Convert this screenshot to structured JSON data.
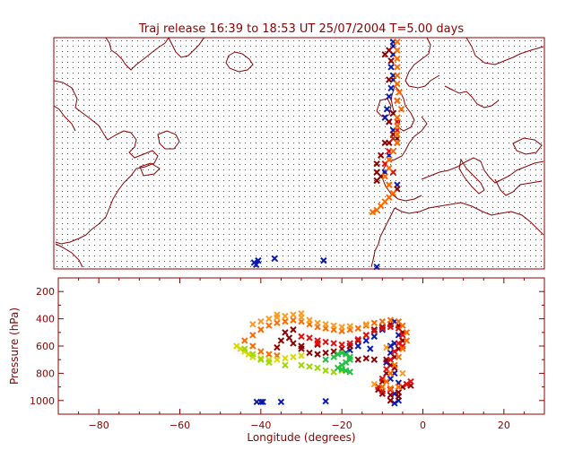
{
  "colors": {
    "axis": "#8b0000",
    "background": "#ffffff",
    "grid_dots": "#7a3a3a",
    "coast": "#8b0000",
    "cross_blue": "#0a1ab0",
    "cross_darkred": "#8b0000",
    "cross_red": "#e01010",
    "cross_orange": "#ff6a00",
    "cross_lightorange": "#ff9a20",
    "cross_yellow": "#d8d800",
    "cross_lime": "#9ad800",
    "cross_green": "#20c040"
  },
  "chart_data": [
    {
      "type": "scatter",
      "title": "Traj release 16:39 to 18:53 UT 25/07/2004     T=5.00 days",
      "xlim": [
        -90,
        30
      ],
      "ylim": [
        25,
        80
      ],
      "grid": "dotted",
      "coastlines": true,
      "series": [
        {
          "color": "blue",
          "points": [
            [
              -7,
              79
            ],
            [
              -7,
              78
            ],
            [
              -7,
              76
            ],
            [
              -7.5,
              73
            ],
            [
              -7,
              71
            ],
            [
              -7,
              70
            ],
            [
              -7.5,
              68
            ],
            [
              -8,
              66
            ],
            [
              -8.5,
              63
            ],
            [
              -9,
              61
            ],
            [
              -8,
              60
            ],
            [
              -7,
              58
            ],
            [
              -6,
              55
            ],
            [
              -8,
              52
            ],
            [
              -9,
              48
            ],
            [
              -6,
              45
            ],
            [
              -40,
              27
            ],
            [
              -41,
              26.5
            ],
            [
              -40.5,
              26
            ],
            [
              -36,
              27.5
            ],
            [
              -24,
              27
            ],
            [
              -11,
              25.5
            ]
          ]
        },
        {
          "color": "darkred",
          "points": [
            [
              -8,
              77
            ],
            [
              -9,
              76
            ],
            [
              -7.5,
              74.5
            ],
            [
              -8,
              70
            ],
            [
              -6,
              65
            ],
            [
              -7,
              62
            ],
            [
              -8,
              60
            ],
            [
              -7,
              57
            ],
            [
              -6,
              56
            ],
            [
              -8,
              55
            ],
            [
              -10,
              52
            ],
            [
              -11,
              50
            ],
            [
              -11,
              48
            ],
            [
              -10,
              47
            ],
            [
              -11,
              46
            ],
            [
              -9,
              55
            ],
            [
              -6,
              44
            ]
          ]
        },
        {
          "color": "red",
          "points": [
            [
              -6,
              60
            ],
            [
              -6,
              58
            ],
            [
              -7,
              56
            ],
            [
              -8,
              53
            ],
            [
              -9,
              50
            ],
            [
              -7,
              48
            ],
            [
              -8,
              45
            ]
          ]
        },
        {
          "color": "orange",
          "points": [
            [
              -6,
              79
            ],
            [
              -6,
              77
            ],
            [
              -6,
              75
            ],
            [
              -6,
              73
            ],
            [
              -6,
              71
            ],
            [
              -6,
              69
            ],
            [
              -5.5,
              67
            ],
            [
              -6,
              65
            ],
            [
              -5,
              63
            ],
            [
              -6,
              61
            ],
            [
              -6,
              59
            ],
            [
              -6,
              57
            ],
            [
              -6,
              55
            ],
            [
              -7,
              53
            ],
            [
              -8,
              51
            ],
            [
              -8,
              49
            ],
            [
              -9,
              47
            ],
            [
              -8,
              45
            ],
            [
              -7,
              43
            ],
            [
              -8,
              42
            ],
            [
              -9,
              41
            ],
            [
              -10,
              40
            ],
            [
              -11,
              39
            ],
            [
              -12,
              38.5
            ]
          ]
        }
      ]
    },
    {
      "type": "scatter",
      "xlabel": "Longitude  (degrees)",
      "ylabel": "Pressure  (hPa)",
      "xlim": [
        -90,
        30
      ],
      "ylim": [
        1100,
        100
      ],
      "xticks": [
        "−80",
        "−60",
        "−40",
        "−20",
        "0",
        "20"
      ],
      "yticks": [
        "200",
        "400",
        "600",
        "800",
        "1000"
      ],
      "series": [
        {
          "color": "blue",
          "points": [
            [
              -7,
              420
            ],
            [
              -8,
              440
            ],
            [
              -10,
              480
            ],
            [
              -12,
              530
            ],
            [
              -14,
              560
            ],
            [
              -16,
              600
            ],
            [
              -18,
              630
            ],
            [
              -19,
              650
            ],
            [
              -13,
              620
            ],
            [
              -8,
              600
            ],
            [
              -5,
              560
            ],
            [
              -6,
              520
            ],
            [
              -7,
              580
            ],
            [
              -8,
              650
            ],
            [
              -9,
              720
            ],
            [
              -7,
              800
            ],
            [
              -6,
              870
            ],
            [
              -7,
              950
            ],
            [
              -6,
              1000
            ],
            [
              -7,
              1020
            ],
            [
              -40,
              1010
            ],
            [
              -41,
              1010
            ],
            [
              -39.5,
              1010
            ],
            [
              -35,
              1010
            ],
            [
              -24,
              1005
            ],
            [
              -8,
              840
            ]
          ]
        },
        {
          "color": "darkred",
          "points": [
            [
              -32,
              480
            ],
            [
              -34,
              500
            ],
            [
              -33,
              540
            ],
            [
              -32,
              580
            ],
            [
              -30,
              620
            ],
            [
              -28,
              650
            ],
            [
              -26,
              660
            ],
            [
              -24,
              650
            ],
            [
              -22,
              640
            ],
            [
              -20,
              620
            ],
            [
              -18,
              600
            ],
            [
              -16,
              560
            ],
            [
              -14,
              520
            ],
            [
              -12,
              480
            ],
            [
              -10,
              460
            ],
            [
              -8,
              440
            ],
            [
              -6,
              450
            ],
            [
              -5,
              500
            ],
            [
              -5,
              560
            ],
            [
              -6,
              620
            ],
            [
              -7,
              680
            ],
            [
              -8,
              740
            ],
            [
              -9,
              800
            ],
            [
              -10,
              860
            ],
            [
              -11,
              920
            ],
            [
              -10,
              950
            ],
            [
              -8,
              960
            ],
            [
              -6,
              940
            ],
            [
              -5,
              900
            ],
            [
              -4,
              880
            ],
            [
              -3,
              890
            ],
            [
              -6,
              970
            ],
            [
              -8,
              1000
            ],
            [
              -12,
              700
            ],
            [
              -14,
              690
            ],
            [
              -16,
              700
            ],
            [
              -26,
              590
            ],
            [
              -30,
              600
            ],
            [
              -36,
              610
            ],
            [
              -35,
              560
            ],
            [
              -9,
              700
            ],
            [
              -7,
              760
            ]
          ]
        },
        {
          "color": "red",
          "points": [
            [
              -30,
              530
            ],
            [
              -28,
              540
            ],
            [
              -26,
              560
            ],
            [
              -24,
              570
            ],
            [
              -22,
              580
            ],
            [
              -20,
              590
            ],
            [
              -18,
              580
            ],
            [
              -16,
              550
            ],
            [
              -14,
              520
            ],
            [
              -12,
              490
            ],
            [
              -10,
              470
            ],
            [
              -8,
              460
            ],
            [
              -6,
              470
            ],
            [
              -5,
              520
            ],
            [
              -6,
              580
            ],
            [
              -7,
              640
            ],
            [
              -8,
              700
            ],
            [
              -9,
              770
            ],
            [
              -10,
              840
            ],
            [
              -11,
              900
            ],
            [
              -10,
              930
            ],
            [
              -8,
              920
            ],
            [
              -6,
              900
            ],
            [
              -4,
              880
            ],
            [
              -3,
              860
            ],
            [
              -5,
              600
            ],
            [
              -26,
              580
            ]
          ]
        },
        {
          "color": "orange",
          "points": [
            [
              -44,
              560
            ],
            [
              -42,
              520
            ],
            [
              -40,
              480
            ],
            [
              -38,
              450
            ],
            [
              -36,
              430
            ],
            [
              -34,
              420
            ],
            [
              -32,
              410
            ],
            [
              -30,
              420
            ],
            [
              -28,
              440
            ],
            [
              -26,
              460
            ],
            [
              -24,
              470
            ],
            [
              -22,
              480
            ],
            [
              -20,
              490
            ],
            [
              -18,
              480
            ],
            [
              -16,
              470
            ],
            [
              -14,
              450
            ],
            [
              -12,
              430
            ],
            [
              -10,
              420
            ],
            [
              -8,
              410
            ],
            [
              -6,
              420
            ],
            [
              -5,
              450
            ],
            [
              -4,
              500
            ],
            [
              -4,
              560
            ],
            [
              -5,
              620
            ],
            [
              -6,
              680
            ],
            [
              -7,
              740
            ],
            [
              -8,
              800
            ],
            [
              -9,
              860
            ],
            [
              -10,
              900
            ],
            [
              -8,
              910
            ],
            [
              -6,
              900
            ],
            [
              -42,
              600
            ],
            [
              -40,
              640
            ],
            [
              -38,
              660
            ],
            [
              -36,
              670
            ]
          ]
        },
        {
          "color": "lightorange",
          "points": [
            [
              -42,
              440
            ],
            [
              -40,
              420
            ],
            [
              -38,
              400
            ],
            [
              -36,
              390
            ],
            [
              -34,
              380
            ],
            [
              -32,
              370
            ],
            [
              -30,
              390
            ],
            [
              -28,
              410
            ],
            [
              -26,
              430
            ],
            [
              -24,
              440
            ],
            [
              -22,
              450
            ],
            [
              -20,
              460
            ],
            [
              -18,
              455
            ],
            [
              -14,
              440
            ],
            [
              -30,
              360
            ],
            [
              -36,
              370
            ],
            [
              -9,
              610
            ],
            [
              -5,
              800
            ],
            [
              -12,
              880
            ]
          ]
        },
        {
          "color": "yellow",
          "points": [
            [
              -46,
              600
            ],
            [
              -45,
              620
            ],
            [
              -44,
              640
            ],
            [
              -43,
              660
            ],
            [
              -42,
              680
            ],
            [
              -40,
              690
            ],
            [
              -38,
              700
            ],
            [
              -36,
              700
            ],
            [
              -34,
              690
            ],
            [
              -32,
              680
            ],
            [
              -30,
              670
            ]
          ]
        },
        {
          "color": "lime",
          "points": [
            [
              -44,
              620
            ],
            [
              -42,
              660
            ],
            [
              -40,
              700
            ],
            [
              -38,
              720
            ],
            [
              -34,
              740
            ],
            [
              -30,
              740
            ],
            [
              -28,
              750
            ],
            [
              -26,
              760
            ],
            [
              -24,
              780
            ],
            [
              -22,
              790
            ],
            [
              -20,
              780
            ]
          ]
        },
        {
          "color": "green",
          "points": [
            [
              -24,
              700
            ],
            [
              -22,
              680
            ],
            [
              -21,
              660
            ],
            [
              -20,
              650
            ],
            [
              -19,
              660
            ],
            [
              -18,
              680
            ],
            [
              -18,
              700
            ],
            [
              -19,
              720
            ],
            [
              -20,
              740
            ],
            [
              -21,
              760
            ],
            [
              -20,
              770
            ],
            [
              -19,
              780
            ],
            [
              -18,
              790
            ]
          ]
        }
      ]
    }
  ]
}
